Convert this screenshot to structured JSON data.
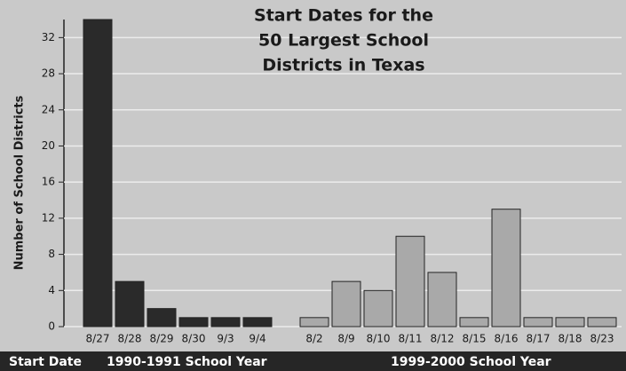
{
  "chart_data": {
    "type": "bar",
    "title": [
      "Start Dates for the",
      "50 Largest School",
      "Districts in Texas"
    ],
    "y_label": "Number of School Districts",
    "x_label": "Start Date",
    "categories": [
      "8/27",
      "8/28",
      "8/29",
      "8/30",
      "9/3",
      "9/4",
      "8/2",
      "8/9",
      "8/10",
      "8/11",
      "8/12",
      "8/15",
      "8/16",
      "8/17",
      "8/18",
      "8/23"
    ],
    "series": [
      {
        "name": "1990-1991 School Year",
        "color": "#2a2a2a",
        "values": [
          34,
          5,
          2,
          1,
          1,
          1,
          null,
          null,
          null,
          null,
          null,
          null,
          null,
          null,
          null,
          null
        ]
      },
      {
        "name": "1999-2000 School Year",
        "color": "#a9a9a9",
        "values": [
          null,
          null,
          null,
          null,
          null,
          null,
          1,
          5,
          4,
          10,
          6,
          1,
          13,
          1,
          1,
          1
        ]
      }
    ],
    "ylim": [
      0,
      34
    ],
    "yticks": [
      0,
      4,
      8,
      12,
      16,
      20,
      24,
      28,
      32
    ],
    "grid": true
  }
}
